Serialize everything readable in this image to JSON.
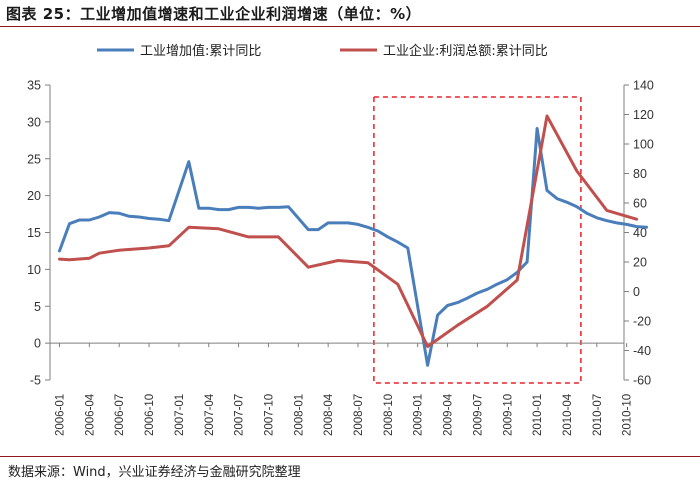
{
  "header": {
    "title": "图表 25：工业增加值增速和工业企业利润增速（单位：%）"
  },
  "footer": {
    "source": "数据来源：Wind，兴业证券经济与金融研究院整理"
  },
  "chart_data": {
    "type": "line",
    "title": "",
    "xlabel": "",
    "ylabel_left": "",
    "ylabel_right": "",
    "ylim_left": [
      -5,
      35
    ],
    "yticks_left": [
      -5,
      0,
      5,
      10,
      15,
      20,
      25,
      30,
      35
    ],
    "ylim_right": [
      -60,
      140
    ],
    "yticks_right": [
      -60,
      -40,
      -20,
      0,
      20,
      40,
      60,
      80,
      100,
      120,
      140
    ],
    "grid": false,
    "legend": "top",
    "x_tick_labels": [
      "2006-01",
      "2006-04",
      "2006-07",
      "2006-10",
      "2007-01",
      "2007-04",
      "2007-07",
      "2007-10",
      "2008-01",
      "2008-04",
      "2008-07",
      "2008-10",
      "2009-01",
      "2009-04",
      "2009-07",
      "2009-10",
      "2010-01",
      "2010-04",
      "2010-07",
      "2010-10"
    ],
    "highlight_region": {
      "from": "2008-09",
      "to": "2010-05",
      "style": "dashed",
      "color": "#e8202a"
    },
    "series": [
      {
        "name": "工业增加值:累计同比",
        "axis": "left",
        "color": "#4a7ebb",
        "points": [
          [
            "2006-01",
            12.5
          ],
          [
            "2006-02",
            16.2
          ],
          [
            "2006-03",
            16.7
          ],
          [
            "2006-04",
            16.7
          ],
          [
            "2006-05",
            17.1
          ],
          [
            "2006-06",
            17.7
          ],
          [
            "2006-07",
            17.6
          ],
          [
            "2006-08",
            17.2
          ],
          [
            "2006-09",
            17.1
          ],
          [
            "2006-10",
            16.9
          ],
          [
            "2006-11",
            16.8
          ],
          [
            "2006-12",
            16.6
          ],
          [
            "2007-02",
            24.6
          ],
          [
            "2007-03",
            18.3
          ],
          [
            "2007-04",
            18.3
          ],
          [
            "2007-05",
            18.1
          ],
          [
            "2007-06",
            18.1
          ],
          [
            "2007-07",
            18.4
          ],
          [
            "2007-08",
            18.4
          ],
          [
            "2007-09",
            18.3
          ],
          [
            "2007-10",
            18.4
          ],
          [
            "2007-11",
            18.4
          ],
          [
            "2007-12",
            18.5
          ],
          [
            "2008-02",
            15.4
          ],
          [
            "2008-03",
            15.4
          ],
          [
            "2008-04",
            16.3
          ],
          [
            "2008-05",
            16.3
          ],
          [
            "2008-06",
            16.3
          ],
          [
            "2008-07",
            16.1
          ],
          [
            "2008-08",
            15.7
          ],
          [
            "2008-09",
            15.2
          ],
          [
            "2008-10",
            14.4
          ],
          [
            "2008-11",
            13.7
          ],
          [
            "2008-12",
            12.9
          ],
          [
            "2009-02",
            -3.0
          ],
          [
            "2009-03",
            3.8
          ],
          [
            "2009-04",
            5.1
          ],
          [
            "2009-05",
            5.5
          ],
          [
            "2009-06",
            6.1
          ],
          [
            "2009-07",
            6.8
          ],
          [
            "2009-08",
            7.3
          ],
          [
            "2009-09",
            8.0
          ],
          [
            "2009-10",
            8.6
          ],
          [
            "2009-11",
            9.6
          ],
          [
            "2009-12",
            11.0
          ],
          [
            "2010-01",
            29.1
          ],
          [
            "2010-02",
            20.7
          ],
          [
            "2010-03",
            19.6
          ],
          [
            "2010-04",
            19.1
          ],
          [
            "2010-05",
            18.5
          ],
          [
            "2010-06",
            17.6
          ],
          [
            "2010-07",
            17.0
          ],
          [
            "2010-08",
            16.6
          ],
          [
            "2010-09",
            16.3
          ],
          [
            "2010-10",
            16.1
          ],
          [
            "2010-11",
            15.8
          ],
          [
            "2010-12",
            15.7
          ]
        ]
      },
      {
        "name": "工业企业:利润总额:累计同比",
        "axis": "right",
        "color": "#c0504d",
        "points": [
          [
            "2006-01",
            22.0
          ],
          [
            "2006-02",
            21.5
          ],
          [
            "2006-04",
            22.5
          ],
          [
            "2006-05",
            26.0
          ],
          [
            "2006-07",
            28.0
          ],
          [
            "2006-10",
            29.5
          ],
          [
            "2006-12",
            31.0
          ],
          [
            "2007-02",
            43.5
          ],
          [
            "2007-05",
            42.5
          ],
          [
            "2007-08",
            37.0
          ],
          [
            "2007-11",
            37.0
          ],
          [
            "2008-02",
            16.5
          ],
          [
            "2008-05",
            21.0
          ],
          [
            "2008-08",
            19.5
          ],
          [
            "2008-11",
            4.9
          ],
          [
            "2009-02",
            -37.3
          ],
          [
            "2009-05",
            -22.9
          ],
          [
            "2009-08",
            -10.0
          ],
          [
            "2009-11",
            7.8
          ],
          [
            "2010-02",
            119.0
          ],
          [
            "2010-05",
            81.6
          ],
          [
            "2010-08",
            55.0
          ],
          [
            "2010-11",
            49.0
          ]
        ]
      }
    ]
  }
}
